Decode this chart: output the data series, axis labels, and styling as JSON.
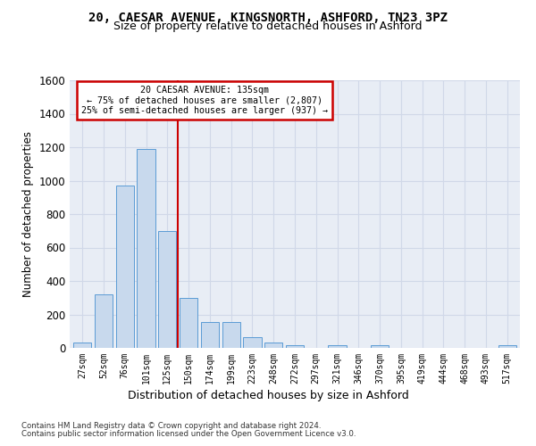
{
  "title1": "20, CAESAR AVENUE, KINGSNORTH, ASHFORD, TN23 3PZ",
  "title2": "Size of property relative to detached houses in Ashford",
  "xlabel": "Distribution of detached houses by size in Ashford",
  "ylabel": "Number of detached properties",
  "categories": [
    "27sqm",
    "52sqm",
    "76sqm",
    "101sqm",
    "125sqm",
    "150sqm",
    "174sqm",
    "199sqm",
    "223sqm",
    "248sqm",
    "272sqm",
    "297sqm",
    "321sqm",
    "346sqm",
    "370sqm",
    "395sqm",
    "419sqm",
    "444sqm",
    "468sqm",
    "493sqm",
    "517sqm"
  ],
  "values": [
    30,
    320,
    970,
    1190,
    700,
    300,
    155,
    155,
    65,
    30,
    15,
    0,
    15,
    0,
    15,
    0,
    0,
    0,
    0,
    0,
    15
  ],
  "bar_color": "#c8d9ed",
  "bar_edge_color": "#5b9bd5",
  "grid_color": "#d0d8e8",
  "property_line_x": 4.5,
  "annotation_title": "20 CAESAR AVENUE: 135sqm",
  "annotation_line1": "← 75% of detached houses are smaller (2,807)",
  "annotation_line2": "25% of semi-detached houses are larger (937) →",
  "annotation_box_color": "#ffffff",
  "annotation_box_edge": "#cc0000",
  "property_line_color": "#cc0000",
  "footnote1": "Contains HM Land Registry data © Crown copyright and database right 2024.",
  "footnote2": "Contains public sector information licensed under the Open Government Licence v3.0.",
  "ylim": [
    0,
    1600
  ],
  "yticks": [
    0,
    200,
    400,
    600,
    800,
    1000,
    1200,
    1400,
    1600
  ],
  "background_color": "#e8edf5",
  "fig_bg": "#ffffff"
}
